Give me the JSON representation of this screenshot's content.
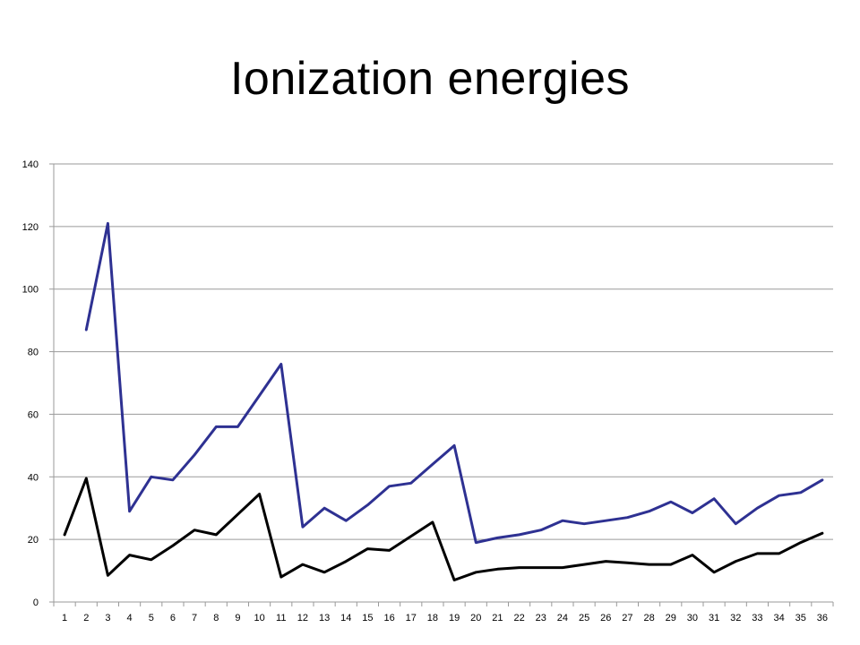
{
  "title": "Ionization energies",
  "chart_data": {
    "type": "line",
    "title": "Ionization energies",
    "xlabel": "",
    "ylabel": "",
    "categories": [
      "1",
      "2",
      "3",
      "4",
      "5",
      "6",
      "7",
      "8",
      "9",
      "10",
      "11",
      "12",
      "13",
      "14",
      "15",
      "16",
      "17",
      "18",
      "19",
      "20",
      "21",
      "22",
      "23",
      "24",
      "25",
      "26",
      "27",
      "28",
      "29",
      "30",
      "31",
      "32",
      "33",
      "34",
      "35",
      "36"
    ],
    "ylim": [
      0,
      140
    ],
    "yticks": [
      0,
      20,
      40,
      60,
      80,
      100,
      120,
      140
    ],
    "grid": "horizontal",
    "legend": "none",
    "series": [
      {
        "color": "#2e3192",
        "values": [
          null,
          87,
          121,
          29,
          40,
          39,
          47,
          56,
          56,
          66,
          76,
          24,
          30,
          26,
          31,
          37,
          38,
          44,
          50,
          19,
          20.5,
          21.5,
          23,
          26,
          25,
          26,
          27,
          29,
          32,
          28.5,
          33,
          25,
          30,
          34,
          35,
          39
        ]
      },
      {
        "color": "#000000",
        "values": [
          21.5,
          39.5,
          8.5,
          15,
          13.5,
          18,
          23,
          21.5,
          28,
          34.5,
          8,
          12,
          9.5,
          13,
          17,
          16.5,
          21,
          25.5,
          7,
          9.5,
          10.5,
          11,
          11,
          11,
          12,
          13,
          12.5,
          12,
          12,
          15,
          9.5,
          13,
          15.5,
          15.5,
          19,
          22
        ]
      }
    ]
  }
}
